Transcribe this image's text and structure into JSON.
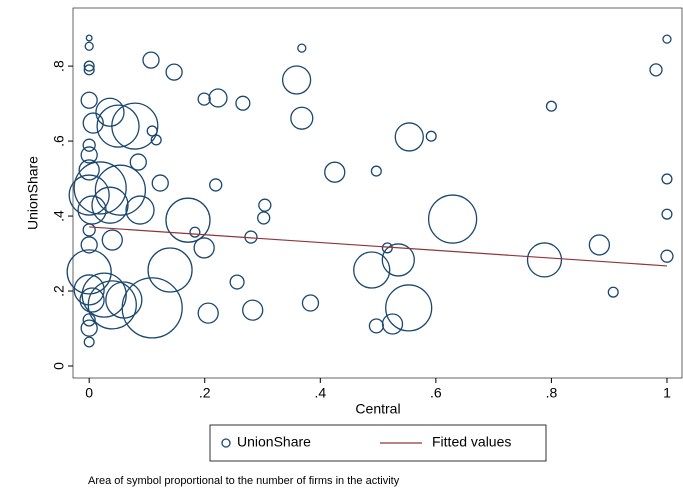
{
  "chart_data": {
    "type": "scatter",
    "xlabel": "Central",
    "ylabel": "UnionShare",
    "note": "Area of symbol proportional to the number of firms in the activity",
    "xlim": [
      -0.028,
      1.026
    ],
    "ylim": [
      -0.032,
      0.955
    ],
    "xticks": [
      0,
      {
        "value": 0.2,
        "label": ".2"
      },
      {
        "value": 0.4,
        "label": ".4"
      },
      {
        "value": 0.6,
        "label": ".6"
      },
      {
        "value": 0.8,
        "label": ".8"
      },
      1
    ],
    "yticks": [
      0,
      {
        "value": 0.2,
        "label": ".2"
      },
      {
        "value": 0.4,
        "label": ".4"
      },
      {
        "value": 0.6,
        "label": ".6"
      },
      {
        "value": 0.8,
        "label": ".8"
      }
    ],
    "grid": false,
    "legend": "bottom",
    "series": [
      {
        "name": "UnionShare",
        "type": "scatter",
        "color": "#1a476f",
        "x": [
          0,
          0,
          0,
          0,
          0.107,
          0.147,
          0.368,
          1,
          0.981,
          0.199,
          0.223,
          0.266,
          0.359,
          0.368,
          0.8,
          0.592,
          0.554,
          0.109,
          0.116,
          0.05,
          0.036,
          0.007,
          0,
          0.079,
          0.219,
          0.123,
          0.085,
          0.019,
          0.054,
          0,
          0,
          0,
          0.425,
          0.497,
          1,
          1,
          0.304,
          0.302,
          0.171,
          0.088,
          0.036,
          0.005,
          0,
          0.629,
          0.183,
          0.28,
          0.199,
          0.04,
          0,
          0,
          0.516,
          0.535,
          0.788,
          0.883,
          1,
          0.907,
          0.489,
          0.14,
          0,
          0,
          0.005,
          0.256,
          0.026,
          0.06,
          0.04,
          0.109,
          0.206,
          0.283,
          0.383,
          0.553,
          0.497,
          0.525,
          0,
          0,
          0
        ],
        "values": [
          0.875,
          0.853,
          0.8,
          0.79,
          0.816,
          0.784,
          0.848,
          0.872,
          0.79,
          0.712,
          0.715,
          0.701,
          0.763,
          0.661,
          0.693,
          0.613,
          0.611,
          0.627,
          0.603,
          0.64,
          0.677,
          0.648,
          0.709,
          0.64,
          0.483,
          0.488,
          0.544,
          0.475,
          0.469,
          0.523,
          0.563,
          0.589,
          0.517,
          0.52,
          0.499,
          0.405,
          0.429,
          0.395,
          0.389,
          0.416,
          0.429,
          0.416,
          0.456,
          0.392,
          0.357,
          0.344,
          0.315,
          0.336,
          0.323,
          0.363,
          0.315,
          0.283,
          0.283,
          0.323,
          0.293,
          0.197,
          0.256,
          0.256,
          0.251,
          0.203,
          0.176,
          0.224,
          0.189,
          0.176,
          0.163,
          0.155,
          0.141,
          0.149,
          0.168,
          0.155,
          0.107,
          0.112,
          0.101,
          0.064,
          0.123
        ],
        "sizes": [
          2,
          4,
          6,
          6,
          16,
          16,
          4,
          4,
          9,
          9,
          20,
          12,
          49,
          30,
          6,
          6,
          49,
          6,
          6,
          110,
          49,
          25,
          16,
          132,
          9,
          16,
          16,
          169,
          156,
          25,
          16,
          9,
          25,
          6,
          6,
          6,
          9,
          9,
          121,
          49,
          81,
          49,
          100,
          144,
          6,
          9,
          25,
          25,
          16,
          9,
          6,
          64,
          72,
          25,
          9,
          6,
          81,
          121,
          121,
          56,
          36,
          12,
          121,
          81,
          144,
          225,
          25,
          25,
          16,
          132,
          12,
          25,
          16,
          6,
          9
        ]
      },
      {
        "name": "Fitted values",
        "type": "line",
        "color": "#90353b",
        "x": [
          0,
          1
        ],
        "values": [
          0.371,
          0.267
        ]
      }
    ]
  }
}
